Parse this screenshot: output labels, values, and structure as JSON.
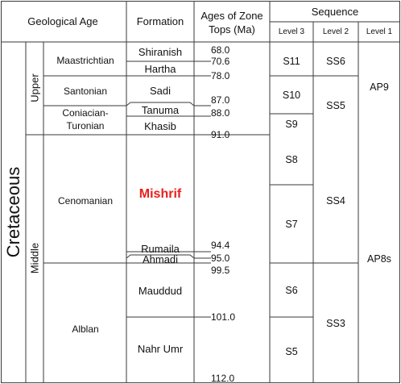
{
  "headers": {
    "geological_age": "Geological Age",
    "formation": "Formation",
    "ages_line1": "Ages of Zone",
    "ages_line2": "Tops (Ma)",
    "sequence": "Sequence",
    "level3": "Level 3",
    "level2": "Level 2",
    "level1": "Level 1"
  },
  "period": "Cretaceous",
  "epochs": {
    "upper": "Upper",
    "middle": "Middle"
  },
  "stages": {
    "maastrichtian": "Maastrichtian",
    "santonian": "Santonian",
    "coniacian_line1": "Coniacian-",
    "coniacian_line2": "Turonian",
    "cenomanian": "Cenomanian",
    "albian": "Alblan"
  },
  "formations": {
    "shiranish": "Shiranish",
    "hartha": "Hartha",
    "sadi": "Sadi",
    "tanuma": "Tanuma",
    "khasib": "Khasib",
    "mishrif": "Mishrif",
    "rumaila": "Rumaila",
    "ahmadi": "Ahmadi",
    "mauddud": "Mauddud",
    "nahr_umr": "Nahr Umr"
  },
  "ages": {
    "a68": "68.0",
    "a70_6": "70.6",
    "a78": "78.0",
    "a87": "87.0",
    "a88": "88.0",
    "a91": "91.0",
    "a94_4": "94.4",
    "a95": "95.0",
    "a99_5": "99.5",
    "a101": "101.0",
    "a112": "112.0"
  },
  "sequences": {
    "level3": {
      "s11": "S11",
      "s10": "S10",
      "s9": "S9",
      "s8": "S8",
      "s7": "S7",
      "s6": "S6",
      "s5": "S5"
    },
    "level2": {
      "ss6": "SS6",
      "ss5": "SS5",
      "ss4": "SS4",
      "ss3": "SS3"
    },
    "level1": {
      "ap9": "AP9",
      "ap8s": "AP8s"
    }
  },
  "colors": {
    "mishrif": "#e8201c",
    "lines": "#3a3a3a"
  }
}
